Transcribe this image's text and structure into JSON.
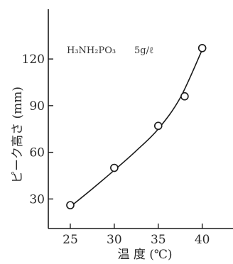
{
  "chart_data": {
    "type": "scatter",
    "xlabel": "温 度 (℃)",
    "ylabel": "ピーク高さ (mm)",
    "annotation": {
      "reagent": "H₃NH₂PO₃",
      "concentration": "5g/ℓ"
    },
    "x_ticks": [
      25,
      30,
      35,
      40
    ],
    "y_ticks": [
      30,
      60,
      90,
      120
    ],
    "xlim": [
      22.5,
      43.5
    ],
    "ylim": [
      11,
      152
    ],
    "grid": false,
    "series": [
      {
        "points": [
          {
            "x": 25,
            "y": 26
          },
          {
            "x": 30,
            "y": 50
          },
          {
            "x": 35,
            "y": 77
          },
          {
            "x": 38,
            "y": 96
          },
          {
            "x": 40,
            "y": 127
          }
        ],
        "fit_curve": [
          [
            25,
            25
          ],
          [
            27.5,
            36.5
          ],
          [
            30,
            48.5
          ],
          [
            32.5,
            61
          ],
          [
            35,
            75
          ],
          [
            37.5,
            95
          ],
          [
            40,
            126
          ]
        ]
      }
    ]
  }
}
